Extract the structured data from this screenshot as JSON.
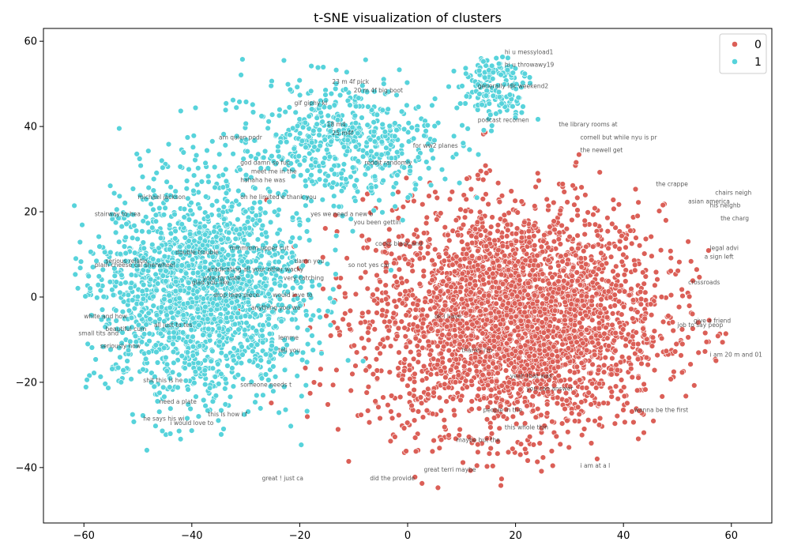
{
  "chart_data": {
    "type": "scatter",
    "title": "t-SNE visualization of clusters",
    "xlabel": "",
    "ylabel": "",
    "xlim": [
      -67.5,
      67.5
    ],
    "ylim": [
      -53,
      63
    ],
    "x_ticks": [
      -60,
      -40,
      -20,
      0,
      20,
      40,
      60
    ],
    "y_ticks": [
      -40,
      -20,
      0,
      20,
      40,
      60
    ],
    "grid": false,
    "legend_position": "top-right",
    "series": [
      {
        "name": "0",
        "color": "#db5f57",
        "approx_count": 3200,
        "center": [
          20,
          -5
        ],
        "spread": [
          22,
          22
        ]
      },
      {
        "name": "1",
        "color": "#57d3db",
        "approx_count": 2600,
        "center": [
          -38,
          2
        ],
        "spread": [
          14,
          18
        ]
      }
    ],
    "annotations": [
      {
        "text": "hi u messyload1",
        "x": 18,
        "y": 57
      },
      {
        "text": "hi u throwawy19",
        "x": 18,
        "y": 54
      },
      {
        "text": "generally idk weekend2",
        "x": 13,
        "y": 49
      },
      {
        "text": "23 m 4f  pick",
        "x": -14,
        "y": 50
      },
      {
        "text": "20 m 4f big boot",
        "x": -10,
        "y": 48
      },
      {
        "text": "gif giphy kl",
        "x": -21,
        "y": 45
      },
      {
        "text": "25 m4f",
        "x": -14,
        "y": 38
      },
      {
        "text": "18 m4",
        "x": -15,
        "y": 40
      },
      {
        "text": "podcast recomen",
        "x": 13,
        "y": 41
      },
      {
        "text": "the library rooms at",
        "x": 28,
        "y": 40
      },
      {
        "text": "cornell but while nyu is pr",
        "x": 32,
        "y": 37
      },
      {
        "text": "the newell get",
        "x": 32,
        "y": 34
      },
      {
        "text": "for ww2 planes",
        "x": 1,
        "y": 35
      },
      {
        "text": "am quien podr",
        "x": -35,
        "y": 37
      },
      {
        "text": "god damn so fuc",
        "x": -31,
        "y": 31
      },
      {
        "text": "meet me in the",
        "x": -29,
        "y": 29
      },
      {
        "text": "hahaha he was",
        "x": -31,
        "y": 27
      },
      {
        "text": "michael jackson",
        "x": -50,
        "y": 23
      },
      {
        "text": "stairway to hea",
        "x": -58,
        "y": 19
      },
      {
        "text": "oh he limited e thank you",
        "x": -31,
        "y": 23
      },
      {
        "text": "reddit randomly",
        "x": -8,
        "y": 31
      },
      {
        "text": "the crappe",
        "x": 46,
        "y": 26
      },
      {
        "text": "asian america",
        "x": 52,
        "y": 22
      },
      {
        "text": "yes we need a new b",
        "x": -18,
        "y": 19
      },
      {
        "text": "you been gettin",
        "x": -10,
        "y": 17
      },
      {
        "text": "cocks black and",
        "x": -6,
        "y": 12
      },
      {
        "text": "serious relatio",
        "x": -56,
        "y": 8
      },
      {
        "text": "plain cheese cal sherwheel",
        "x": -58,
        "y": 7
      },
      {
        "text": "double trouble",
        "x": -43,
        "y": 10
      },
      {
        "text": "mmmmm upper cut",
        "x": -33,
        "y": 11
      },
      {
        "text": "damn you",
        "x": -21,
        "y": 8
      },
      {
        "text": "so not yes car",
        "x": -11,
        "y": 7
      },
      {
        "text": "eradicating all your other wacky",
        "x": -37,
        "y": 6
      },
      {
        "text": "vote for vote",
        "x": -38,
        "y": 4
      },
      {
        "text": "glad you like",
        "x": -40,
        "y": 3
      },
      {
        "text": "very catching",
        "x": -23,
        "y": 4
      },
      {
        "text": "would love to",
        "x": -25,
        "y": 0
      },
      {
        "text": "anything you wa",
        "x": -29,
        "y": -3
      },
      {
        "text": "drop lego piece",
        "x": -36,
        "y": 0
      },
      {
        "text": "white and how",
        "x": -60,
        "y": -5
      },
      {
        "text": "all just to tes",
        "x": -47,
        "y": -7
      },
      {
        "text": "beautiful cum",
        "x": -56,
        "y": -8
      },
      {
        "text": "small tits and",
        "x": -61,
        "y": -9
      },
      {
        "text": "seriously how",
        "x": -57,
        "y": -12
      },
      {
        "text": "lemme",
        "x": -24,
        "y": -10
      },
      {
        "text": "tell you",
        "x": -24,
        "y": -13
      },
      {
        "text": "i am 20 m and 01",
        "x": 56,
        "y": -14
      },
      {
        "text": "shit this is he",
        "x": -49,
        "y": -20
      },
      {
        "text": "someone needs t",
        "x": -31,
        "y": -21
      },
      {
        "text": "need a plate",
        "x": -46,
        "y": -25
      },
      {
        "text": "this is how i f",
        "x": -37,
        "y": -28
      },
      {
        "text": "he says his wi",
        "x": -49,
        "y": -29
      },
      {
        "text": "i would love to",
        "x": -44,
        "y": -30
      },
      {
        "text": "yeah that was",
        "x": 19,
        "y": -19
      },
      {
        "text": "you can answer",
        "x": 22,
        "y": -22
      },
      {
        "text": "people in the",
        "x": 14,
        "y": -27
      },
      {
        "text": "this whole thin",
        "x": 18,
        "y": -31
      },
      {
        "text": "maybe but the",
        "x": 9,
        "y": -34
      },
      {
        "text": "wanna be the first",
        "x": 42,
        "y": -27
      },
      {
        "text": "i am at a l",
        "x": 32,
        "y": -40
      },
      {
        "text": "great ! just ca",
        "x": -27,
        "y": -43
      },
      {
        "text": "did the provide",
        "x": -7,
        "y": -43
      },
      {
        "text": "great terri maybe",
        "x": 3,
        "y": -41
      },
      {
        "text": "give a friend",
        "x": 53,
        "y": -6
      },
      {
        "text": "job to say peop",
        "x": 50,
        "y": -7
      },
      {
        "text": "crossroads",
        "x": 52,
        "y": 3
      },
      {
        "text": "legal advi",
        "x": 56,
        "y": 11
      },
      {
        "text": "a sign left",
        "x": 55,
        "y": 9
      },
      {
        "text": "the charg",
        "x": 58,
        "y": 18
      },
      {
        "text": "his neighb",
        "x": 56,
        "y": 21
      },
      {
        "text": "chairs neigh",
        "x": 57,
        "y": 24
      },
      {
        "text": "ok i have",
        "x": 5,
        "y": -5
      },
      {
        "text": "thanks i'm",
        "x": 10,
        "y": -13
      }
    ]
  }
}
